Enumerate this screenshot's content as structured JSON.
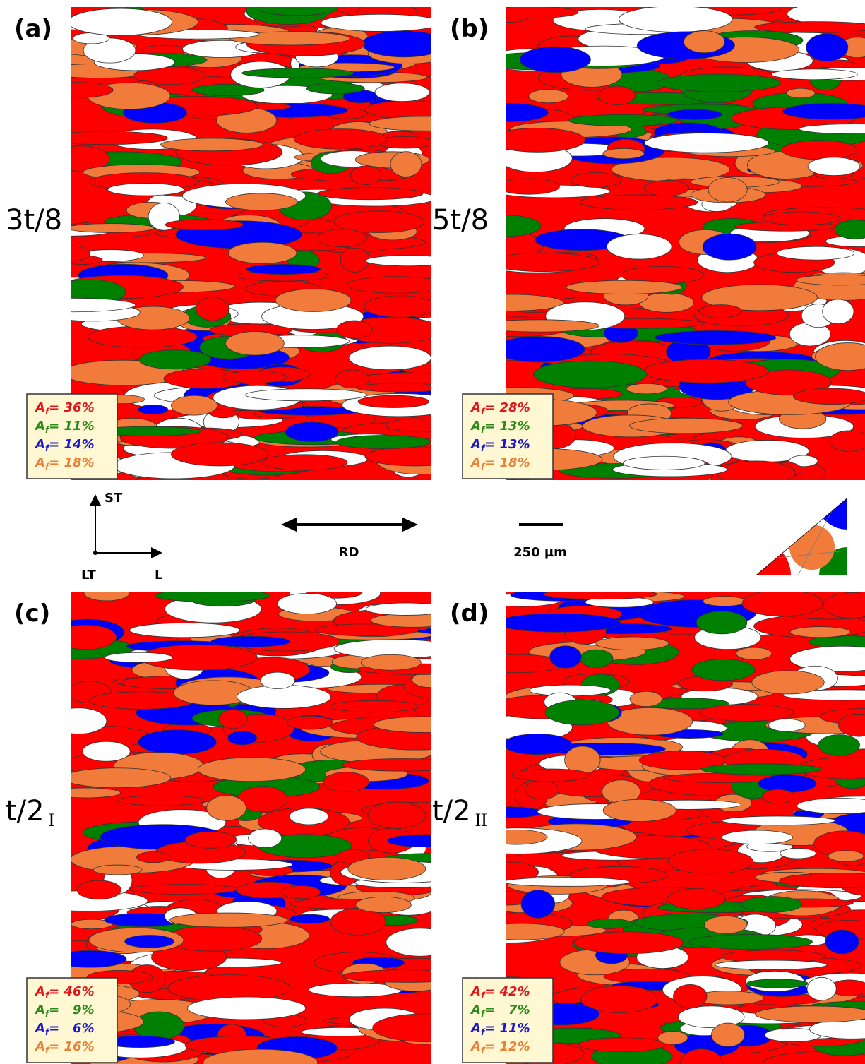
{
  "fraction_symbol": "A",
  "fraction_subscript": "f",
  "panels": [
    {
      "label": "(a)",
      "position": {
        "main": "3t/8",
        "sub": null
      },
      "fractions": [
        {
          "text": "= 36%",
          "color": "#e0141a"
        },
        {
          "text": "= 11%",
          "color": "#2a8a1a"
        },
        {
          "text": "= 14%",
          "color": "#1a1acc"
        },
        {
          "text": "= 18%",
          "color": "#e8823a"
        }
      ]
    },
    {
      "label": "(b)",
      "position": {
        "main": "5t/8",
        "sub": null
      },
      "fractions": [
        {
          "text": "= 28%",
          "color": "#e0141a"
        },
        {
          "text": "= 13%",
          "color": "#2a8a1a"
        },
        {
          "text": "= 13%",
          "color": "#1a1acc"
        },
        {
          "text": "= 18%",
          "color": "#e8823a"
        }
      ]
    },
    {
      "label": "(c)",
      "position": {
        "main": "t/2",
        "sub": "I"
      },
      "fractions": [
        {
          "text": "= 46%",
          "color": "#e0141a"
        },
        {
          "text": "=   9%",
          "color": "#2a8a1a"
        },
        {
          "text": "=   6%",
          "color": "#1a1acc"
        },
        {
          "text": "= 16%",
          "color": "#e8823a"
        }
      ]
    },
    {
      "label": "(d)",
      "position": {
        "main": "t/2",
        "sub": "II"
      },
      "fractions": [
        {
          "text": "= 42%",
          "color": "#e0141a"
        },
        {
          "text": "=   7%",
          "color": "#2a8a1a"
        },
        {
          "text": "= 11%",
          "color": "#1a1acc"
        },
        {
          "text": "= 12%",
          "color": "#e8823a"
        }
      ]
    }
  ],
  "axes": {
    "up": "ST",
    "origin": "LT",
    "right": "L"
  },
  "direction": "RD",
  "scale_bar": "250 µm"
}
